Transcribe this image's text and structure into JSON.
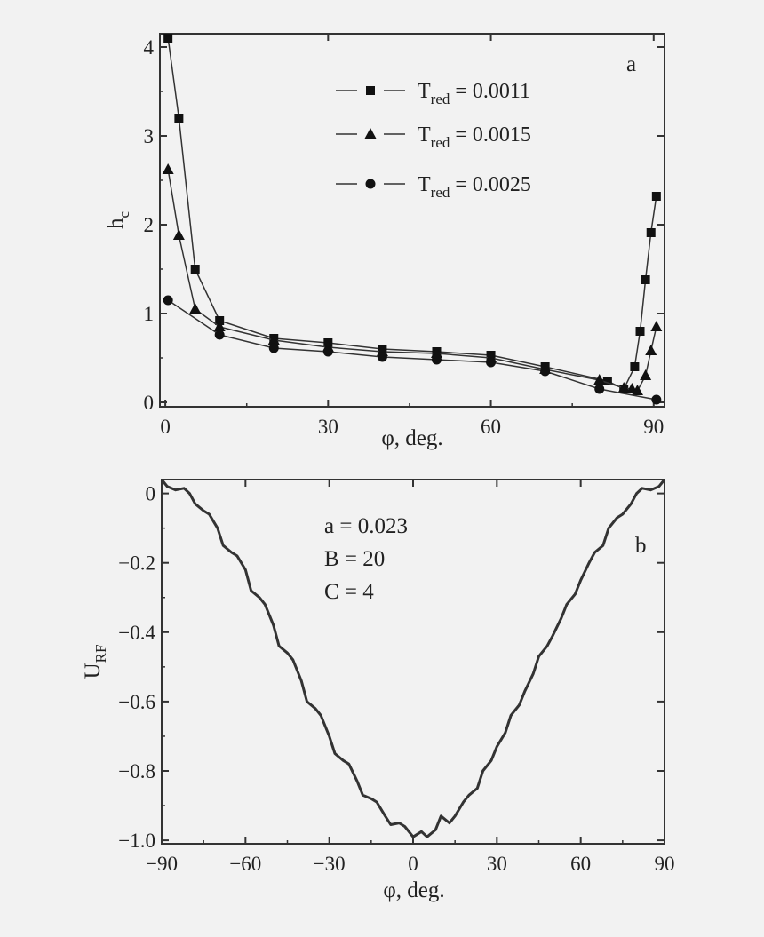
{
  "chart_data": [
    {
      "type": "line",
      "panel_label": "a",
      "xlabel": "φ, deg.",
      "ylabel": {
        "main": "h",
        "sub": "c"
      },
      "xlim": [
        -1,
        92
      ],
      "ylim": [
        -0.05,
        4.15
      ],
      "xticks": [
        "0",
        "30",
        "60",
        "90"
      ],
      "yticks": [
        "0",
        "1",
        "2",
        "3",
        "4"
      ],
      "grid": false,
      "legend_position": "top-center",
      "series": [
        {
          "name": "T_red = 0.0011",
          "legend": {
            "main": "T",
            "sub": "red",
            "rest": " = 0.0011"
          },
          "marker": "square",
          "x": [
            0.5,
            2.5,
            5.5,
            10,
            20,
            30,
            40,
            50,
            60,
            70,
            81.5,
            84.5,
            86.5,
            87.5,
            88.5,
            89.5,
            90.5
          ],
          "y": [
            4.1,
            3.2,
            1.5,
            0.92,
            0.72,
            0.67,
            0.6,
            0.57,
            0.53,
            0.4,
            0.24,
            0.15,
            0.4,
            0.8,
            1.38,
            1.91,
            2.32
          ]
        },
        {
          "name": "T_red = 0.0015",
          "legend": {
            "main": "T",
            "sub": "red",
            "rest": " = 0.0015"
          },
          "marker": "triangle",
          "x": [
            0.5,
            2.5,
            5.5,
            10,
            20,
            30,
            40,
            50,
            60,
            70,
            80,
            84.5,
            86,
            87,
            88.5,
            89.5,
            90.5
          ],
          "y": [
            2.62,
            1.88,
            1.05,
            0.85,
            0.7,
            0.62,
            0.57,
            0.55,
            0.5,
            0.37,
            0.25,
            0.16,
            0.15,
            0.13,
            0.3,
            0.58,
            0.85
          ]
        },
        {
          "name": "T_red = 0.0025",
          "legend": {
            "main": "T",
            "sub": "red",
            "rest": " = 0.0025"
          },
          "marker": "circle",
          "x": [
            0.5,
            10,
            20,
            30,
            40,
            50,
            60,
            70,
            80,
            90.5
          ],
          "y": [
            1.15,
            0.76,
            0.61,
            0.57,
            0.51,
            0.48,
            0.45,
            0.35,
            0.15,
            0.03
          ]
        }
      ]
    },
    {
      "type": "line",
      "panel_label": "b",
      "xlabel": "φ, deg.",
      "ylabel": {
        "main": "U",
        "sub": "RF"
      },
      "xlim": [
        -90,
        90
      ],
      "ylim": [
        -1.01,
        0.04
      ],
      "xticks": [
        "−90",
        "−60",
        "−30",
        "0",
        "30",
        "60",
        "90"
      ],
      "yticks": [
        "0",
        "−0.2",
        "−0.4",
        "−0.6",
        "−0.8",
        "−1.0"
      ],
      "grid": false,
      "annotations": [
        "a = 0.023",
        "B = 20",
        "C = 4"
      ],
      "series": [
        {
          "x": [
            -90,
            -88,
            -85,
            -82,
            -80,
            -78,
            -75,
            -73,
            -70,
            -68,
            -65,
            -63,
            -60,
            -58,
            -55,
            -53,
            -50,
            -48,
            -45,
            -43,
            -40,
            -38,
            -35,
            -33,
            -30,
            -28,
            -25,
            -23,
            -20,
            -18,
            -15,
            -13,
            -10,
            -8,
            -5,
            -3,
            0,
            3,
            5,
            8,
            10,
            13,
            15,
            18,
            20,
            23,
            25,
            28,
            30,
            33,
            35,
            38,
            40,
            43,
            45,
            48,
            50,
            53,
            55,
            58,
            60,
            63,
            65,
            68,
            70,
            73,
            75,
            78,
            80,
            82,
            85,
            88,
            90
          ],
          "y": [
            0.04,
            0.02,
            0.01,
            0.015,
            0.0,
            -0.03,
            -0.05,
            -0.06,
            -0.1,
            -0.15,
            -0.17,
            -0.18,
            -0.22,
            -0.28,
            -0.3,
            -0.32,
            -0.38,
            -0.44,
            -0.46,
            -0.48,
            -0.54,
            -0.6,
            -0.62,
            -0.64,
            -0.7,
            -0.75,
            -0.77,
            -0.78,
            -0.83,
            -0.87,
            -0.88,
            -0.89,
            -0.93,
            -0.955,
            -0.95,
            -0.96,
            -0.99,
            -0.975,
            -0.99,
            -0.97,
            -0.93,
            -0.95,
            -0.93,
            -0.89,
            -0.87,
            -0.85,
            -0.8,
            -0.77,
            -0.73,
            -0.69,
            -0.64,
            -0.61,
            -0.57,
            -0.52,
            -0.47,
            -0.44,
            -0.41,
            -0.36,
            -0.32,
            -0.29,
            -0.25,
            -0.2,
            -0.17,
            -0.15,
            -0.1,
            -0.07,
            -0.06,
            -0.03,
            0.0,
            0.015,
            0.01,
            0.02,
            0.04
          ]
        }
      ]
    }
  ]
}
